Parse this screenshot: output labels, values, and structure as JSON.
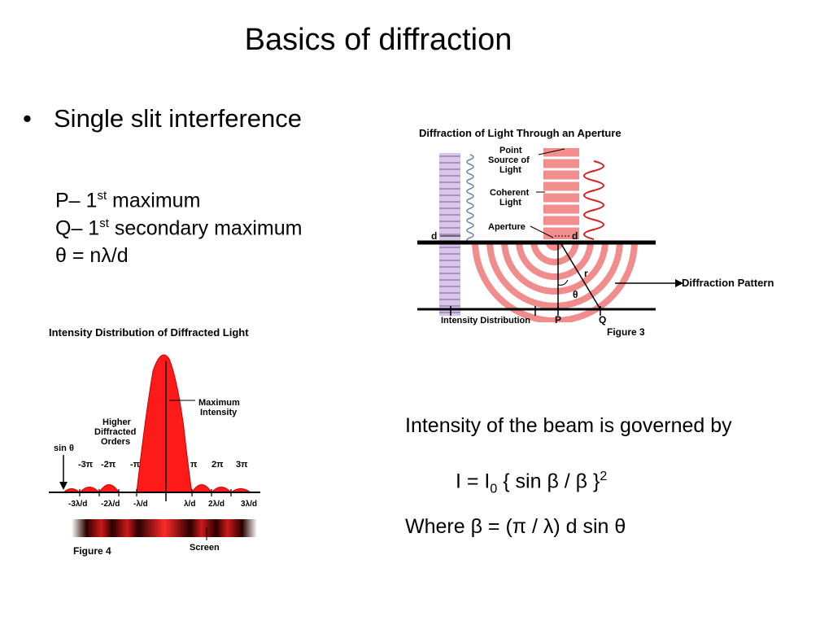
{
  "slide": {
    "title": "Basics of diffraction",
    "bullet": "Single slit interference",
    "definitions": {
      "p_prefix": "P– 1",
      "p_sup": "st",
      "p_suffix": " maximum",
      "q_prefix": "Q– 1",
      "q_sup": "st",
      "q_suffix": " secondary maximum",
      "theta_eq": "θ = nλ/d"
    },
    "intensity_text": "Intensity of the beam is governed by",
    "formula": {
      "lhs": "I = I",
      "sub": "0",
      "mid": " { sin β / β }",
      "sup": "2"
    },
    "where_text": "Where β = (π / λ) d sin θ",
    "diffraction_pattern_label": "Diffraction Pattern"
  },
  "figure3": {
    "title": "Diffraction of Light Through an Aperture",
    "point_source_1": "Point",
    "point_source_2": "Source of",
    "point_source_3": "Light",
    "coherent_1": "Coherent",
    "coherent_2": "Light",
    "aperture": "Aperture",
    "d_left": "d",
    "d_right": "d",
    "r": "r",
    "theta": "θ",
    "intensity_distribution": "Intensity Distribution",
    "p": "P",
    "q": "Q",
    "caption": "Figure 3"
  },
  "figure4": {
    "title": "Intensity Distribution of Diffracted Light",
    "max_1": "Maximum",
    "max_2": "Intensity",
    "higher_1": "Higher",
    "higher_2": "Diffracted",
    "higher_3": "Orders",
    "sin_theta": "sin θ",
    "pi_labels": [
      "-3π",
      "-2π",
      "-π",
      "π",
      "2π",
      "3π"
    ],
    "lambda_labels": [
      "-3λ/d",
      "-2λ/d",
      "-λ/d",
      "λ/d",
      "2λ/d",
      "3λ/d"
    ],
    "screen": "Screen",
    "caption": "Figure 4"
  }
}
